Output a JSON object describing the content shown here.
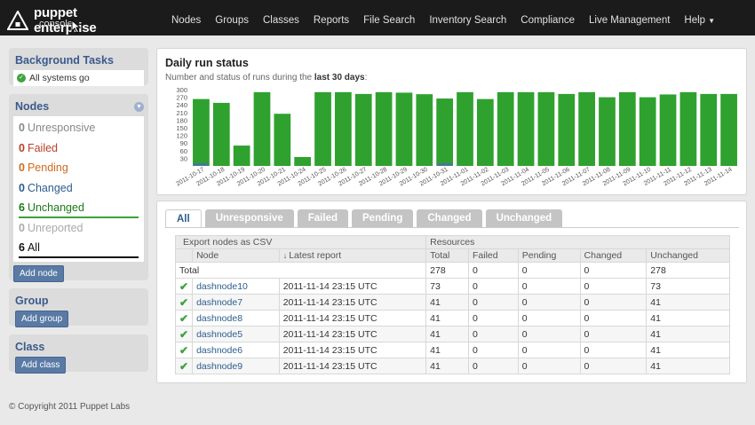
{
  "app": {
    "title": "puppet enterprise",
    "subtitle": "console"
  },
  "nav": {
    "items": [
      "Nodes",
      "Groups",
      "Classes",
      "Reports",
      "File Search",
      "Inventory Search",
      "Compliance",
      "Live Management"
    ],
    "help": "Help"
  },
  "sidebar": {
    "background_tasks": {
      "title": "Background Tasks",
      "status": "All systems go"
    },
    "nodes": {
      "title": "Nodes",
      "statuses": [
        {
          "count": "0",
          "label": "Unresponsive"
        },
        {
          "count": "0",
          "label": "Failed"
        },
        {
          "count": "0",
          "label": "Pending"
        },
        {
          "count": "0",
          "label": "Changed"
        },
        {
          "count": "6",
          "label": "Unchanged"
        },
        {
          "count": "0",
          "label": "Unreported"
        },
        {
          "count": "6",
          "label": "All"
        }
      ],
      "add_button": "Add node"
    },
    "group": {
      "title": "Group",
      "add_button": "Add group"
    },
    "class": {
      "title": "Class",
      "add_button": "Add class"
    }
  },
  "run_status": {
    "title": "Daily run status",
    "subtitle_prefix": "Number and status of runs during the ",
    "subtitle_bold": "last 30 days",
    "subtitle_suffix": ":"
  },
  "chart_data": {
    "type": "bar",
    "ylim": [
      0,
      300
    ],
    "yticks": [
      30,
      60,
      90,
      120,
      150,
      180,
      210,
      240,
      270,
      300
    ],
    "categories": [
      "2011-10-17",
      "2011-10-18",
      "2011-10-19",
      "2011-10-20",
      "2011-10-21",
      "2011-10-24",
      "2011-10-25",
      "2011-10-26",
      "2011-10-27",
      "2011-10-28",
      "2011-10-29",
      "2011-10-30",
      "2011-10-31",
      "2011-11-01",
      "2011-11-02",
      "2011-11-03",
      "2011-11-04",
      "2011-11-05",
      "2011-11-06",
      "2011-11-07",
      "2011-11-08",
      "2011-11-09",
      "2011-11-10",
      "2011-11-11",
      "2011-11-12",
      "2011-11-13",
      "2011-11-14"
    ],
    "series": [
      {
        "values": [
          263,
          248,
          80,
          290,
          205,
          35,
          290,
          290,
          283,
          290,
          288,
          282,
          265,
          290,
          263,
          290,
          290,
          290,
          283,
          290,
          270,
          290,
          270,
          281,
          290,
          283,
          283
        ],
        "color": "#2fa12f"
      },
      {
        "values": [
          8,
          0,
          0,
          0,
          0,
          0,
          0,
          0,
          0,
          0,
          0,
          0,
          8,
          0,
          0,
          0,
          0,
          0,
          0,
          0,
          0,
          0,
          0,
          0,
          0,
          0,
          0
        ],
        "color": "#4a6fb0"
      }
    ],
    "grid": false
  },
  "tabs": [
    "All",
    "Unresponsive",
    "Failed",
    "Pending",
    "Changed",
    "Unchanged"
  ],
  "table": {
    "export_link": "Export nodes as CSV",
    "resources_header": "Resources",
    "columns": [
      "Node",
      "Latest report",
      "Total",
      "Failed",
      "Pending",
      "Changed",
      "Unchanged"
    ],
    "total_row": {
      "label": "Total",
      "total": "278",
      "failed": "0",
      "pending": "0",
      "changed": "0",
      "unchanged": "278"
    },
    "rows": [
      {
        "node": "dashnode10",
        "report": "2011-11-14 23:15 UTC",
        "total": "73",
        "failed": "0",
        "pending": "0",
        "changed": "0",
        "unchanged": "73"
      },
      {
        "node": "dashnode7",
        "report": "2011-11-14 23:15 UTC",
        "total": "41",
        "failed": "0",
        "pending": "0",
        "changed": "0",
        "unchanged": "41"
      },
      {
        "node": "dashnode8",
        "report": "2011-11-14 23:15 UTC",
        "total": "41",
        "failed": "0",
        "pending": "0",
        "changed": "0",
        "unchanged": "41"
      },
      {
        "node": "dashnode5",
        "report": "2011-11-14 23:15 UTC",
        "total": "41",
        "failed": "0",
        "pending": "0",
        "changed": "0",
        "unchanged": "41"
      },
      {
        "node": "dashnode6",
        "report": "2011-11-14 23:15 UTC",
        "total": "41",
        "failed": "0",
        "pending": "0",
        "changed": "0",
        "unchanged": "41"
      },
      {
        "node": "dashnode9",
        "report": "2011-11-14 23:15 UTC",
        "total": "41",
        "failed": "0",
        "pending": "0",
        "changed": "0",
        "unchanged": "41"
      }
    ]
  },
  "footer": "© Copyright 2011 Puppet Labs"
}
